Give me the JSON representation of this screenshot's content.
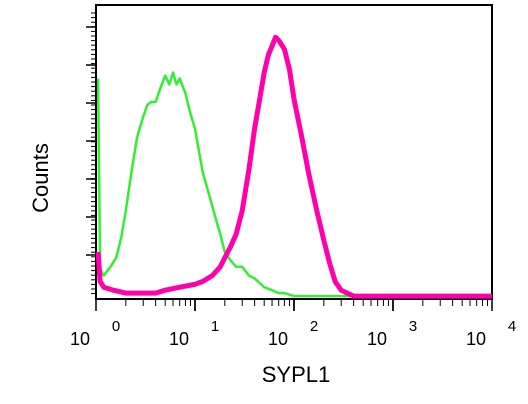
{
  "chart_data": {
    "type": "line",
    "title": "",
    "xlabel": "SYPL1",
    "ylabel": "Counts",
    "x_scale": "log",
    "xlim": [
      1,
      10000
    ],
    "ylim": [
      0,
      100
    ],
    "x_ticks": [
      {
        "value": 1,
        "base": "10",
        "exp": "0"
      },
      {
        "value": 10,
        "base": "10",
        "exp": "1"
      },
      {
        "value": 100,
        "base": "10",
        "exp": "2"
      },
      {
        "value": 1000,
        "base": "10",
        "exp": "3"
      },
      {
        "value": 10000,
        "base": "10",
        "exp": "4"
      }
    ],
    "grid": false,
    "legend": "none",
    "series": [
      {
        "color": "#33ee33",
        "x": [
          1.05,
          1.1,
          1.2,
          1.4,
          1.6,
          1.8,
          2.0,
          2.3,
          2.6,
          3.0,
          3.3,
          3.6,
          4.0,
          4.5,
          5.0,
          5.5,
          6.0,
          6.5,
          7.0,
          8.0,
          9.0,
          10,
          11,
          12,
          14,
          16,
          18,
          20,
          23,
          26,
          30,
          35,
          40,
          50,
          60,
          70,
          80,
          100,
          130,
          170,
          200,
          300,
          500,
          1000,
          10000
        ],
        "values": [
          75,
          10,
          8,
          11,
          14,
          21,
          30,
          44,
          55,
          62,
          66,
          67,
          67,
          72,
          76,
          73,
          77,
          73,
          75,
          70,
          63,
          58,
          50,
          43,
          35,
          28,
          22,
          16,
          13,
          11,
          11,
          8,
          7,
          4,
          3,
          2,
          2,
          1,
          1,
          1,
          1,
          1,
          1,
          1,
          1
        ]
      },
      {
        "color": "#ff00aa",
        "x": [
          1.05,
          1.1,
          1.2,
          1.5,
          2,
          3,
          4,
          5,
          7,
          10,
          12,
          15,
          18,
          20,
          23,
          26,
          30,
          35,
          40,
          45,
          50,
          55,
          60,
          65,
          70,
          80,
          90,
          100,
          120,
          140,
          170,
          200,
          230,
          260,
          300,
          400,
          600,
          1000,
          10000
        ],
        "values": [
          16,
          6,
          4,
          3,
          2,
          2,
          2,
          3,
          4,
          5,
          6,
          8,
          11,
          14,
          18,
          22,
          30,
          44,
          58,
          68,
          77,
          83,
          86,
          89,
          88,
          85,
          78,
          68,
          55,
          43,
          30,
          20,
          12,
          6,
          3,
          1,
          1,
          1,
          1
        ]
      }
    ]
  }
}
